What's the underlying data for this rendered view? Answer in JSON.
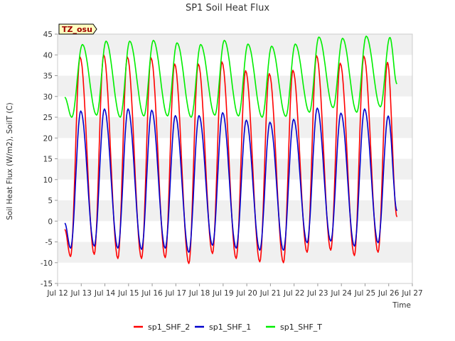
{
  "chart_data": {
    "type": "line",
    "title": "SP1 Soil Heat Flux",
    "xlabel": "Time",
    "ylabel": "Soil Heat Flux (W/m2), SoilT (C)",
    "badge": "TZ_osu",
    "xlim": [
      12,
      27
    ],
    "ylim": [
      -15,
      45
    ],
    "x_ticks": [
      {
        "value": 12,
        "label": "Jul 12"
      },
      {
        "value": 13,
        "label": "Jul 13"
      },
      {
        "value": 14,
        "label": "Jul 14"
      },
      {
        "value": 15,
        "label": "Jul 15"
      },
      {
        "value": 16,
        "label": "Jul 16"
      },
      {
        "value": 17,
        "label": "Jul 17"
      },
      {
        "value": 18,
        "label": "Jul 18"
      },
      {
        "value": 19,
        "label": "Jul 19"
      },
      {
        "value": 20,
        "label": "Jul 20"
      },
      {
        "value": 21,
        "label": "Jul 21"
      },
      {
        "value": 22,
        "label": "Jul 22"
      },
      {
        "value": 23,
        "label": "Jul 23"
      },
      {
        "value": 24,
        "label": "Jul 24"
      },
      {
        "value": 25,
        "label": "Jul 25"
      },
      {
        "value": 26,
        "label": "Jul 26"
      },
      {
        "value": 27,
        "label": "Jul 27"
      }
    ],
    "y_ticks": [
      -15,
      -10,
      -5,
      0,
      5,
      10,
      15,
      20,
      25,
      30,
      35,
      40,
      45
    ],
    "grid": "horizontal bands",
    "legend_position": "bottom",
    "series": [
      {
        "name": "sp1_SHF_2",
        "color": "#ff0000",
        "x": [
          12.3,
          12.55,
          12.95,
          13.55,
          13.95,
          14.55,
          14.95,
          15.55,
          15.95,
          16.55,
          16.95,
          17.55,
          17.95,
          18.55,
          18.95,
          19.55,
          19.95,
          20.55,
          20.95,
          21.55,
          21.95,
          22.55,
          22.95,
          23.55,
          23.95,
          24.55,
          24.95,
          25.55,
          25.95,
          26.35
        ],
        "y": [
          -2,
          -8.5,
          39.5,
          -8,
          40,
          -9,
          39.5,
          -9,
          39.3,
          -8.8,
          37.8,
          -10.2,
          37.8,
          -7.8,
          38.3,
          -9,
          36.2,
          -9.8,
          35.5,
          -10,
          36.3,
          -7.5,
          39.8,
          -7,
          38,
          -8.3,
          39.7,
          -7.5,
          38.2,
          1
        ]
      },
      {
        "name": "sp1_SHF_1",
        "color": "#0000cc",
        "x": [
          12.3,
          12.55,
          12.98,
          13.55,
          13.98,
          14.55,
          14.98,
          15.55,
          15.98,
          16.55,
          16.98,
          17.55,
          17.98,
          18.55,
          18.98,
          19.55,
          19.98,
          20.55,
          20.98,
          21.55,
          21.98,
          22.55,
          22.98,
          23.55,
          23.98,
          24.55,
          24.98,
          25.55,
          25.98,
          26.35
        ],
        "y": [
          -0.5,
          -6.5,
          26.5,
          -6,
          27,
          -6.5,
          27,
          -6.8,
          26.7,
          -6.5,
          25.4,
          -7.5,
          25.4,
          -5.8,
          26.1,
          -6.5,
          24.3,
          -7,
          23.8,
          -7,
          24.5,
          -5.2,
          27.2,
          -4.8,
          26,
          -6,
          27,
          -5.2,
          25.3,
          2.5
        ]
      },
      {
        "name": "sp1_SHF_T",
        "color": "#00ee00",
        "x": [
          12.3,
          12.6,
          13.05,
          13.65,
          14.05,
          14.65,
          15.05,
          15.65,
          16.05,
          16.65,
          17.05,
          17.65,
          18.05,
          18.65,
          19.05,
          19.65,
          20.05,
          20.65,
          21.05,
          21.65,
          22.05,
          22.65,
          23.05,
          23.65,
          24.05,
          24.65,
          25.05,
          25.65,
          26.05,
          26.35
        ],
        "y": [
          29.8,
          25,
          42.5,
          25.5,
          43.3,
          25,
          43.3,
          25.3,
          43.5,
          25.3,
          42.9,
          25,
          42.5,
          25.5,
          43.5,
          25.3,
          42.6,
          25,
          42.1,
          25.2,
          42.6,
          26.2,
          44.3,
          27.3,
          44,
          26.2,
          44.5,
          27.5,
          44.2,
          33
        ]
      }
    ]
  }
}
